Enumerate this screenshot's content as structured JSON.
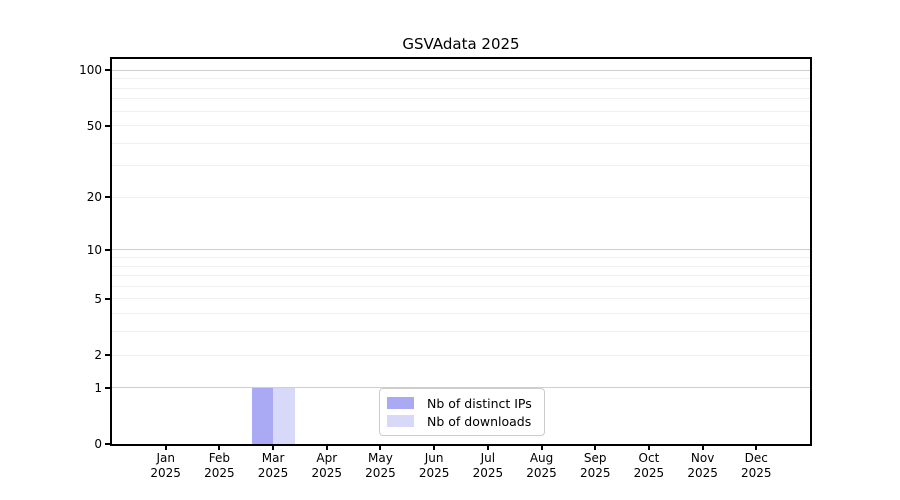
{
  "chart_data": {
    "type": "bar",
    "title": "GSVAdata 2025",
    "categories": [
      "Jan",
      "Feb",
      "Mar",
      "Apr",
      "May",
      "Jun",
      "Jul",
      "Aug",
      "Sep",
      "Oct",
      "Nov",
      "Dec"
    ],
    "category_year": "2025",
    "series": [
      {
        "name": "Nb of distinct IPs",
        "color": "#a9a9f4",
        "values": [
          0,
          0,
          1,
          0,
          0,
          0,
          0,
          0,
          0,
          0,
          0,
          0
        ]
      },
      {
        "name": "Nb of downloads",
        "color": "#d8d8f8",
        "values": [
          0,
          0,
          1,
          0,
          0,
          0,
          0,
          0,
          0,
          0,
          0,
          0
        ]
      }
    ],
    "y_axis": {
      "scale": "log1p",
      "ticks": [
        0,
        1,
        2,
        5,
        10,
        20,
        50,
        100
      ],
      "max": 115,
      "major_gridlines": [
        1,
        10,
        100
      ],
      "minor_gridlines": [
        2,
        3,
        4,
        5,
        6,
        7,
        8,
        9,
        20,
        30,
        40,
        50,
        60,
        70,
        80,
        90
      ]
    },
    "legend_position": "lower-center",
    "colors": {
      "major_grid": "#cfcfcf",
      "minor_grid": "#efefef",
      "spine": "#000000"
    }
  }
}
